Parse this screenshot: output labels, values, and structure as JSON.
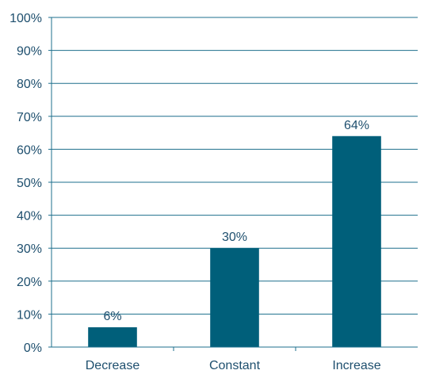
{
  "chart_data": {
    "type": "bar",
    "categories": [
      "Decrease",
      "Constant",
      "Increase"
    ],
    "values": [
      6,
      30,
      64
    ],
    "data_labels": [
      "6%",
      "30%",
      "64%"
    ],
    "ylim": [
      0,
      100
    ],
    "yticks": [
      0,
      10,
      20,
      30,
      40,
      50,
      60,
      70,
      80,
      90,
      100
    ],
    "ytick_labels": [
      "0%",
      "10%",
      "20%",
      "30%",
      "40%",
      "50%",
      "60%",
      "70%",
      "80%",
      "90%",
      "100%"
    ],
    "grid": true,
    "legend": "none",
    "colors": {
      "bar": "#005f7a",
      "grid": "#1d6f8c",
      "text": "#1e4f6e"
    }
  }
}
